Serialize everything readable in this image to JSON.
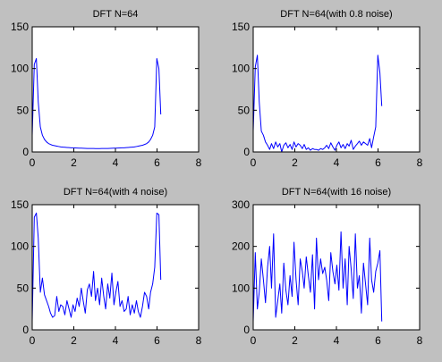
{
  "colors": {
    "background": "#c0c0c0",
    "axes_bg": "#ffffff",
    "line": "#0000ff",
    "axis": "#000000"
  },
  "chart_data": [
    {
      "type": "line",
      "title": "DFT N=64",
      "xlim": [
        0,
        8
      ],
      "ylim": [
        0,
        150
      ],
      "xticks": [
        "0",
        "2",
        "4",
        "6",
        "8"
      ],
      "yticks": [
        "0",
        "50",
        "100",
        "150"
      ],
      "grid": false,
      "series": [
        {
          "x": [
            0.0,
            0.1,
            0.2,
            0.29,
            0.39,
            0.49,
            0.59,
            0.69,
            0.79,
            0.88,
            0.98,
            1.08,
            1.18,
            1.28,
            1.37,
            1.47,
            1.57,
            1.67,
            1.77,
            1.87,
            1.96,
            2.06,
            2.16,
            2.26,
            2.36,
            2.45,
            2.55,
            2.65,
            2.75,
            2.85,
            2.95,
            3.04,
            3.14,
            3.24,
            3.34,
            3.44,
            3.53,
            3.63,
            3.73,
            3.83,
            3.93,
            4.02,
            4.12,
            4.22,
            4.32,
            4.42,
            4.52,
            4.61,
            4.71,
            4.81,
            4.91,
            5.01,
            5.1,
            5.2,
            5.3,
            5.4,
            5.5,
            5.6,
            5.69,
            5.79,
            5.89,
            5.99,
            6.09,
            6.18
          ],
          "y": [
            20,
            105,
            112,
            60,
            30,
            20,
            15,
            12,
            10,
            9,
            8,
            7.5,
            7,
            6.5,
            6,
            5.8,
            5.6,
            5.4,
            5.2,
            5,
            4.9,
            4.8,
            4.7,
            4.6,
            4.5,
            4.4,
            4.3,
            4.2,
            4.2,
            4.1,
            4.1,
            4.0,
            4.0,
            4.0,
            4.1,
            4.1,
            4.2,
            4.2,
            4.3,
            4.4,
            4.5,
            4.6,
            4.7,
            4.8,
            4.9,
            5,
            5.2,
            5.4,
            5.6,
            5.8,
            6,
            6.5,
            7,
            7.5,
            8,
            9,
            10,
            12,
            15,
            20,
            30,
            112,
            100,
            45
          ]
        }
      ]
    },
    {
      "type": "line",
      "title": "DFT N=64(with 0.8 noise)",
      "xlim": [
        0,
        8
      ],
      "ylim": [
        0,
        150
      ],
      "xticks": [
        "0",
        "2",
        "4",
        "6",
        "8"
      ],
      "yticks": [
        "0",
        "50",
        "100",
        "150"
      ],
      "grid": false,
      "series": [
        {
          "x": [
            0.0,
            0.1,
            0.2,
            0.29,
            0.39,
            0.49,
            0.59,
            0.69,
            0.79,
            0.88,
            0.98,
            1.08,
            1.18,
            1.28,
            1.37,
            1.47,
            1.57,
            1.67,
            1.77,
            1.87,
            1.96,
            2.06,
            2.16,
            2.26,
            2.36,
            2.45,
            2.55,
            2.65,
            2.75,
            2.85,
            2.95,
            3.04,
            3.14,
            3.24,
            3.34,
            3.44,
            3.53,
            3.63,
            3.73,
            3.83,
            3.93,
            4.02,
            4.12,
            4.22,
            4.32,
            4.42,
            4.52,
            4.61,
            4.71,
            4.81,
            4.91,
            5.01,
            5.1,
            5.2,
            5.3,
            5.4,
            5.5,
            5.6,
            5.69,
            5.79,
            5.89,
            5.99,
            6.09,
            6.18
          ],
          "y": [
            25,
            102,
            116,
            60,
            25,
            20,
            12,
            8,
            3,
            10,
            4,
            12,
            6,
            10,
            0,
            8,
            11,
            5,
            9,
            3,
            12,
            6,
            10,
            8,
            4,
            9,
            3,
            5,
            2,
            4,
            3,
            3,
            2,
            4,
            3,
            5,
            8,
            4,
            11,
            6,
            2,
            8,
            12,
            5,
            9,
            4,
            10,
            7,
            14,
            3,
            7,
            10,
            13,
            8,
            12,
            10,
            8,
            16,
            5,
            18,
            30,
            116,
            95,
            55
          ]
        }
      ]
    },
    {
      "type": "line",
      "title": "DFT N=64(with 4 noise)",
      "xlim": [
        0,
        8
      ],
      "ylim": [
        0,
        150
      ],
      "xticks": [
        "0",
        "2",
        "4",
        "6",
        "8"
      ],
      "yticks": [
        "0",
        "50",
        "100",
        "150"
      ],
      "grid": false,
      "series": [
        {
          "x": [
            0.0,
            0.1,
            0.2,
            0.29,
            0.39,
            0.49,
            0.59,
            0.69,
            0.79,
            0.88,
            0.98,
            1.08,
            1.18,
            1.28,
            1.37,
            1.47,
            1.57,
            1.67,
            1.77,
            1.87,
            1.96,
            2.06,
            2.16,
            2.26,
            2.36,
            2.45,
            2.55,
            2.65,
            2.75,
            2.85,
            2.95,
            3.04,
            3.14,
            3.24,
            3.34,
            3.44,
            3.53,
            3.63,
            3.73,
            3.83,
            3.93,
            4.02,
            4.12,
            4.22,
            4.32,
            4.42,
            4.52,
            4.61,
            4.71,
            4.81,
            4.91,
            5.01,
            5.1,
            5.2,
            5.3,
            5.4,
            5.5,
            5.6,
            5.69,
            5.79,
            5.89,
            5.99,
            6.09,
            6.18
          ],
          "y": [
            10,
            135,
            140,
            110,
            45,
            62,
            42,
            35,
            28,
            20,
            15,
            17,
            40,
            22,
            30,
            28,
            18,
            35,
            25,
            15,
            30,
            22,
            38,
            28,
            50,
            35,
            20,
            48,
            55,
            40,
            70,
            35,
            50,
            30,
            62,
            40,
            25,
            55,
            38,
            68,
            30,
            45,
            58,
            28,
            35,
            22,
            25,
            40,
            18,
            30,
            20,
            35,
            22,
            15,
            28,
            45,
            40,
            25,
            45,
            55,
            75,
            140,
            138,
            60
          ]
        }
      ]
    },
    {
      "type": "line",
      "title": "DFT N=64(with 16 noise)",
      "xlim": [
        0,
        8
      ],
      "ylim": [
        0,
        300
      ],
      "xticks": [
        "0",
        "2",
        "4",
        "6",
        "8"
      ],
      "yticks": [
        "0",
        "100",
        "200",
        "300"
      ],
      "grid": false,
      "series": [
        {
          "x": [
            0.0,
            0.1,
            0.2,
            0.29,
            0.39,
            0.49,
            0.59,
            0.69,
            0.79,
            0.88,
            0.98,
            1.08,
            1.18,
            1.28,
            1.37,
            1.47,
            1.57,
            1.67,
            1.77,
            1.87,
            1.96,
            2.06,
            2.16,
            2.26,
            2.36,
            2.45,
            2.55,
            2.65,
            2.75,
            2.85,
            2.95,
            3.04,
            3.14,
            3.24,
            3.34,
            3.44,
            3.53,
            3.63,
            3.73,
            3.83,
            3.93,
            4.02,
            4.12,
            4.22,
            4.32,
            4.42,
            4.52,
            4.61,
            4.71,
            4.81,
            4.91,
            5.01,
            5.1,
            5.2,
            5.3,
            5.4,
            5.5,
            5.6,
            5.69,
            5.79,
            5.89,
            5.99,
            6.09,
            6.18
          ],
          "y": [
            20,
            185,
            50,
            90,
            170,
            120,
            65,
            150,
            200,
            100,
            230,
            30,
            70,
            110,
            40,
            160,
            95,
            60,
            130,
            80,
            210,
            120,
            60,
            170,
            140,
            100,
            175,
            130,
            90,
            180,
            50,
            220,
            120,
            170,
            135,
            150,
            120,
            70,
            185,
            140,
            110,
            155,
            95,
            235,
            100,
            170,
            60,
            200,
            145,
            75,
            230,
            100,
            130,
            40,
            160,
            110,
            60,
            220,
            120,
            90,
            140,
            160,
            190,
            20
          ]
        }
      ]
    }
  ]
}
